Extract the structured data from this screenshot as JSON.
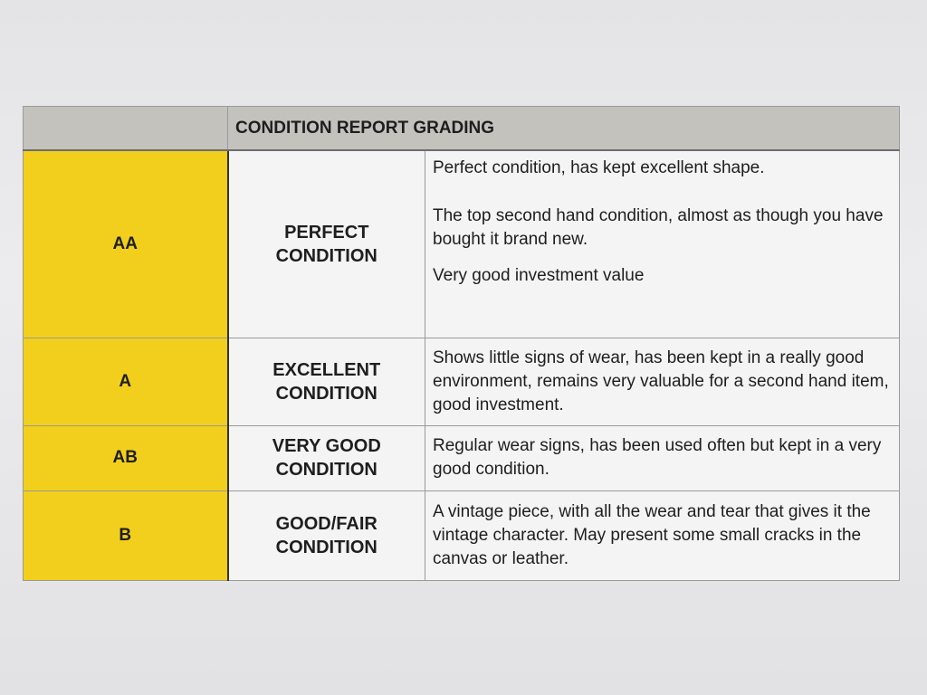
{
  "header": {
    "title": "CONDITION REPORT GRADING"
  },
  "table": {
    "rows": [
      {
        "grade": "AA",
        "condition": "PERFECT CONDITION",
        "description": [
          "Perfect condition, has kept excellent shape.",
          "The top second hand condition, almost as though you have bought it brand new.",
          "Very good investment value"
        ]
      },
      {
        "grade": "A",
        "condition": "EXCELLENT CONDITION",
        "description": [
          "Shows little signs of wear, has been kept in a really good environment, remains very valuable for a second hand item, good investment."
        ]
      },
      {
        "grade": "AB",
        "condition": "VERY GOOD CONDITION",
        "description": [
          "Regular wear signs, has been used often but kept in a very good condition."
        ]
      },
      {
        "grade": "B",
        "condition": "GOOD/FAIR CONDITION",
        "description": [
          "A vintage piece, with all the wear and tear that gives it the vintage character. May present some small cracks in the canvas or leather."
        ]
      }
    ]
  }
}
